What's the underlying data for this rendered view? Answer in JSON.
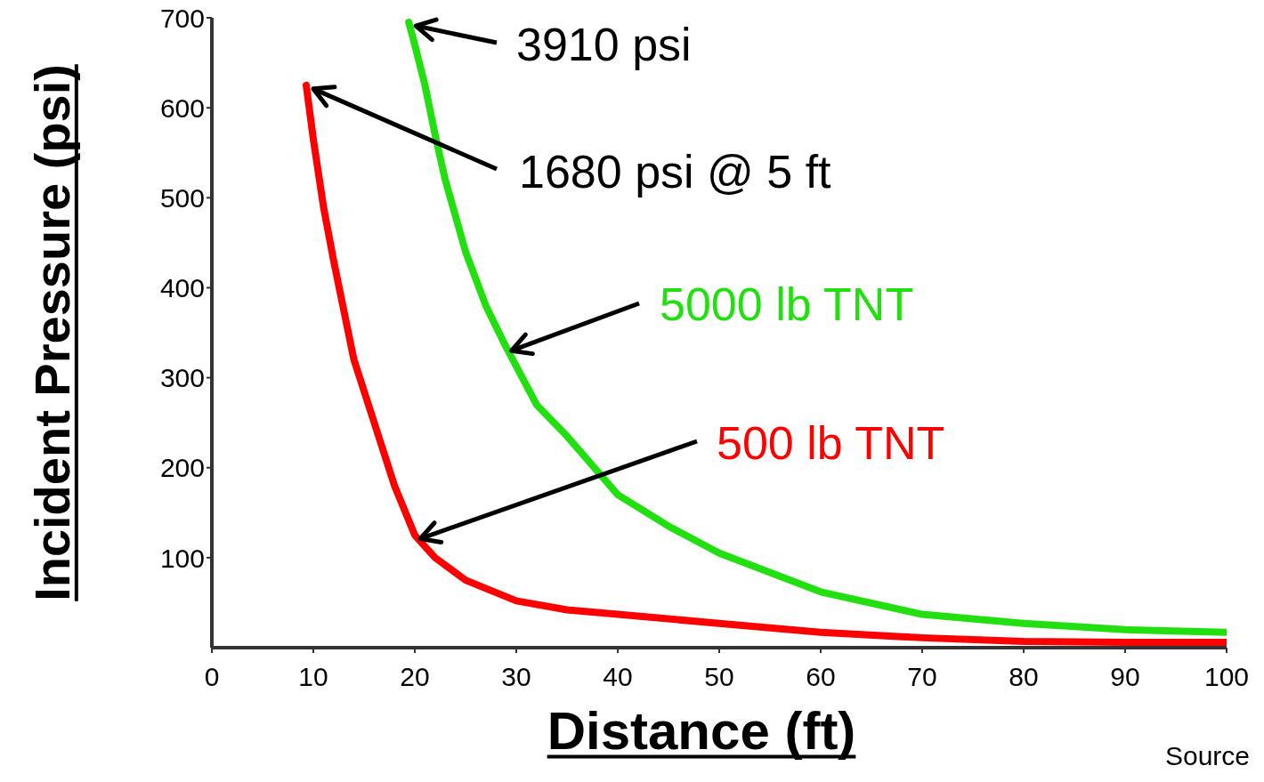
{
  "chart_data": {
    "type": "line",
    "xlabel": "Distance (ft)",
    "ylabel": "Incident Pressure (psi)",
    "xlim": [
      0,
      100
    ],
    "ylim": [
      0,
      700
    ],
    "xticks": [
      0,
      10,
      20,
      30,
      40,
      50,
      60,
      70,
      80,
      90,
      100
    ],
    "yticks": [
      100,
      200,
      300,
      400,
      500,
      600,
      700
    ],
    "grid": false,
    "legend": false,
    "marker": "none",
    "line_style": "solid",
    "series": [
      {
        "name": "5000 lb TNT",
        "color": "#22e010",
        "x": [
          19.4,
          20,
          21,
          22,
          23,
          25,
          27,
          29,
          32,
          35,
          40,
          45,
          50,
          60,
          70,
          80,
          90,
          100
        ],
        "values": [
          695,
          670,
          625,
          570,
          520,
          440,
          380,
          334,
          270,
          235,
          170,
          135,
          105,
          62,
          37,
          27,
          20,
          17
        ]
      },
      {
        "name": "500 lb TNT",
        "color": "#ff0000",
        "x": [
          9.3,
          10,
          11,
          12,
          13,
          14,
          16,
          18,
          20,
          22,
          25,
          30,
          35,
          40,
          50,
          60,
          70,
          80,
          90,
          100
        ],
        "values": [
          625,
          565,
          490,
          430,
          375,
          320,
          250,
          180,
          125,
          100,
          75,
          52,
          42,
          37,
          27,
          17,
          11,
          7,
          6,
          6
        ]
      }
    ],
    "annotations": [
      {
        "text": "3910 psi",
        "x": 19.4,
        "y": 695
      },
      {
        "text": "1680 psi @ 5 ft",
        "x": 9.3,
        "y": 625
      },
      "Source"
    ]
  }
}
